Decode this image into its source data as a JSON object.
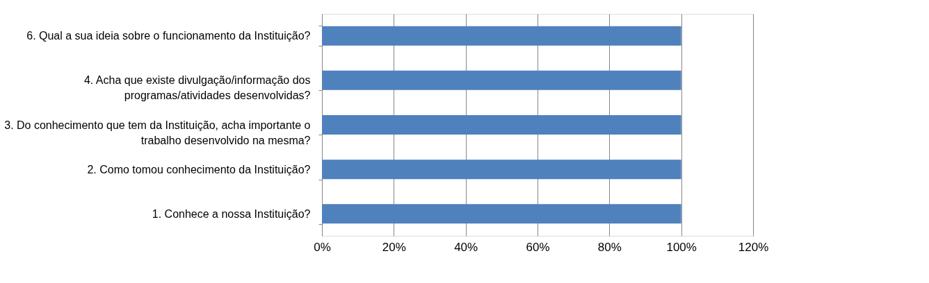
{
  "chart_data": {
    "type": "bar",
    "orientation": "horizontal",
    "categories": [
      "6. Qual a sua ideia sobre o funcionamento da Instituição?",
      "4. Acha que existe divulgação/informação dos programas/atividades desenvolvidas?",
      "3. Do conhecimento que tem da Instituição, acha importante o trabalho desenvolvido na mesma?",
      "2. Como tomou conhecimento da Instituição?",
      "1. Conhece a nossa Instituição?"
    ],
    "values": [
      100,
      100,
      100,
      100,
      100
    ],
    "color": "#4f81bd",
    "xlim": [
      0,
      120
    ],
    "xticks": [
      {
        "value": 0,
        "label": "0%"
      },
      {
        "value": 20,
        "label": "20%"
      },
      {
        "value": 40,
        "label": "40%"
      },
      {
        "value": 60,
        "label": "60%"
      },
      {
        "value": 80,
        "label": "80%"
      },
      {
        "value": 100,
        "label": "100%"
      },
      {
        "value": 120,
        "label": "120%"
      }
    ],
    "grid": "x"
  }
}
